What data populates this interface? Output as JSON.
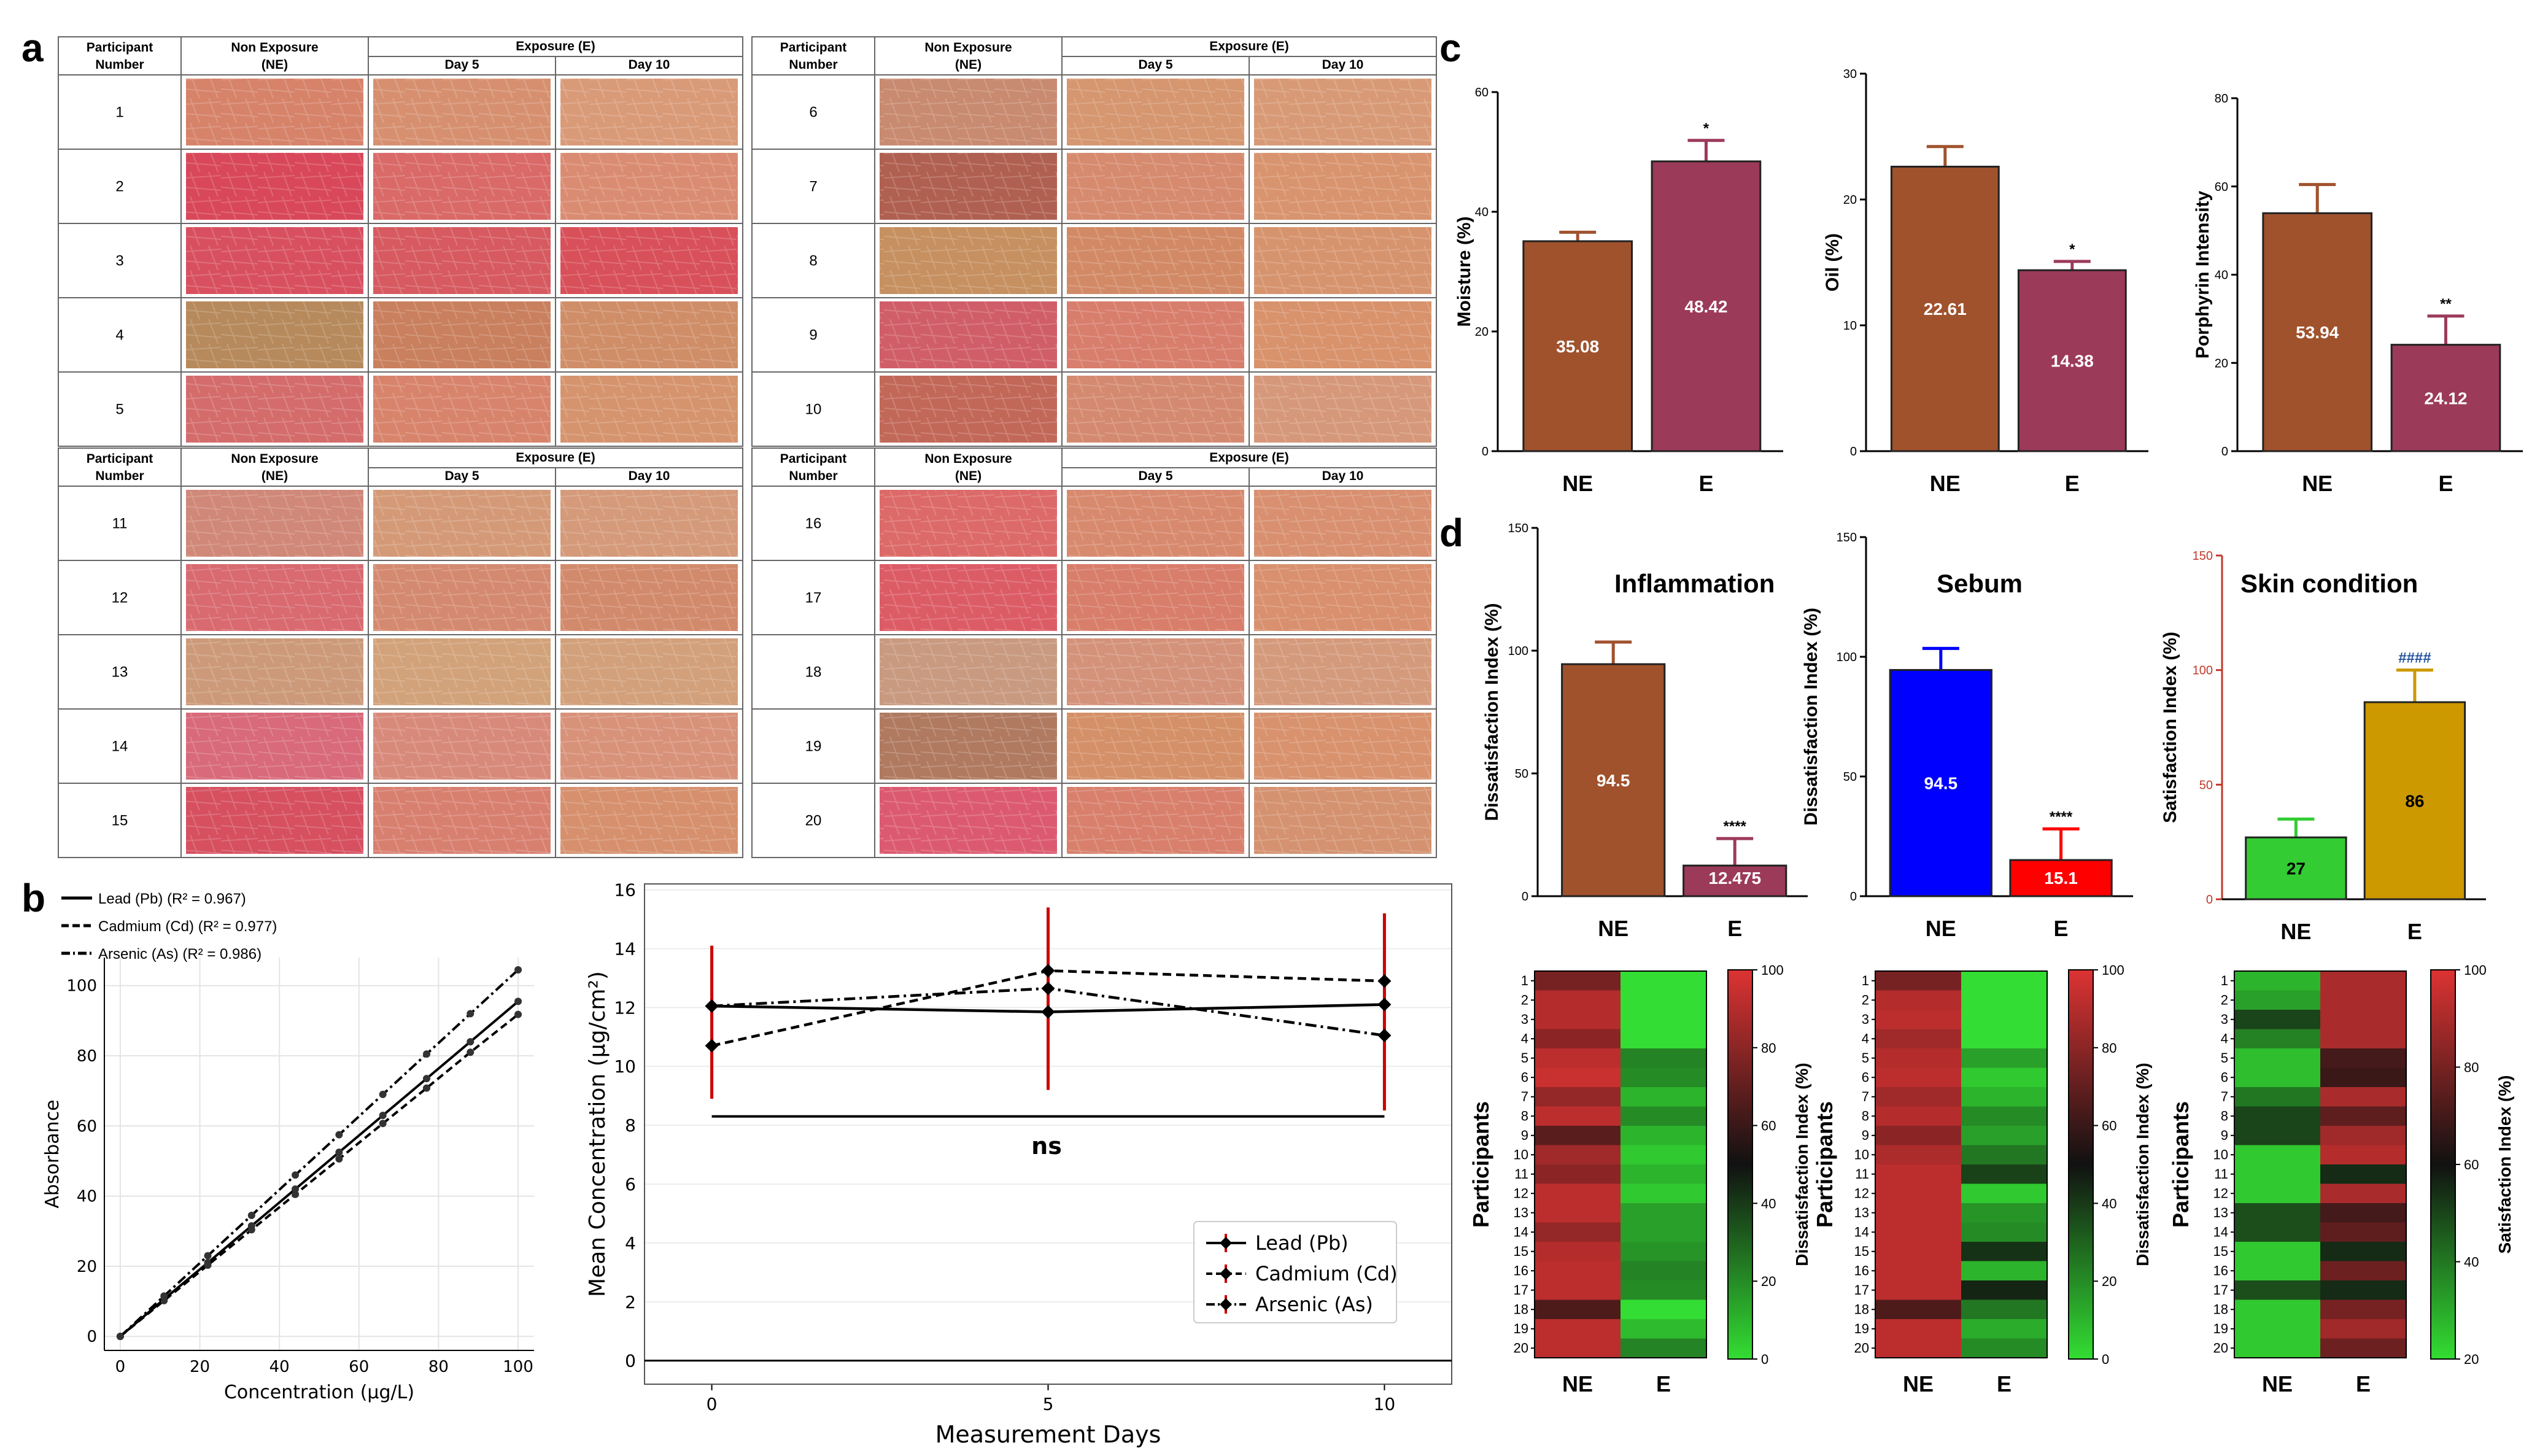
{
  "panel_a": {
    "label": "a",
    "tables": [
      {
        "participants": [
          "1",
          "2",
          "3",
          "4",
          "5"
        ],
        "tones": [
          [
            "#d6836a",
            "#d69070",
            "#d99a78"
          ],
          [
            "#d8485a",
            "#d96a68",
            "#da8c72"
          ],
          [
            "#d85060",
            "#d65a60",
            "#d8505a"
          ],
          [
            "#b68a5c",
            "#c9805e",
            "#cf8e68"
          ],
          [
            "#d46c6c",
            "#d8846c",
            "#d5946e"
          ]
        ]
      },
      {
        "participants": [
          "6",
          "7",
          "8",
          "9",
          "10"
        ],
        "tones": [
          [
            "#c88a70",
            "#d59670",
            "#d89a76"
          ],
          [
            "#b06050",
            "#d68a6e",
            "#d8946e"
          ],
          [
            "#c69060",
            "#d28a66",
            "#d6946e"
          ],
          [
            "#d05e68",
            "#d87e6c",
            "#d8926c"
          ],
          [
            "#c26858",
            "#d48a70",
            "#d6987a"
          ]
        ]
      },
      {
        "participants": [
          "11",
          "12",
          "13",
          "14",
          "15"
        ],
        "tones": [
          [
            "#d08878",
            "#d49a78",
            "#d49a7a"
          ],
          [
            "#d86a70",
            "#d48a70",
            "#d28a6c"
          ],
          [
            "#cc9a7a",
            "#d2a27a",
            "#d2a07a"
          ],
          [
            "#d86a7a",
            "#d88a7a",
            "#d8927a"
          ],
          [
            "#d65060",
            "#d88070",
            "#d6906e"
          ]
        ]
      },
      {
        "participants": [
          "16",
          "17",
          "18",
          "19",
          "20"
        ],
        "tones": [
          [
            "#dc6a68",
            "#d88a6e",
            "#d89070"
          ],
          [
            "#dc5c66",
            "#d87e6a",
            "#d8906e"
          ],
          [
            "#c89a80",
            "#d4927a",
            "#d49a7c"
          ],
          [
            "#b07a60",
            "#d49068",
            "#d8926e"
          ],
          [
            "#dc5a70",
            "#d8806c",
            "#d49270"
          ]
        ]
      }
    ],
    "header": {
      "participant": "Participant",
      "number": "Number",
      "non_exposure": "Non Exposure",
      "ne": "(NE)",
      "exposure": "Exposure (E)",
      "day5": "Day 5",
      "day10": "Day 10"
    }
  },
  "panel_b_left": {
    "label": "b",
    "legend": [
      "Lead (Pb) (R² = 0.967)",
      "Cadmium (Cd) (R² = 0.977)",
      "Arsenic (As) (R² = 0.986)"
    ]
  },
  "panel_b_right": {
    "annotation": "ns",
    "legend": [
      "Lead (Pb)",
      "Cadmium (Cd)",
      "Arsenic (As)"
    ]
  },
  "panel_c": {
    "label": "c"
  },
  "panel_d": {
    "label": "d"
  },
  "chart_data": [
    {
      "id": "b-calibration",
      "type": "line",
      "title": "",
      "xlabel": "Concentration (µg/L)",
      "ylabel": "Absorbance",
      "xlim": [
        -4,
        104
      ],
      "ylim": [
        -4,
        108
      ],
      "xticks": [
        0,
        20,
        40,
        60,
        80,
        100
      ],
      "yticks": [
        0,
        20,
        40,
        60,
        80,
        100
      ],
      "x": [
        0,
        11,
        22,
        33,
        44,
        55,
        66,
        77,
        88,
        100
      ],
      "series": [
        {
          "name": "Lead (Pb) (R² = 0.967)",
          "dash": "solid",
          "values": [
            0,
            10.6,
            21,
            31.5,
            42,
            52.5,
            63,
            73.5,
            84,
            95.5
          ]
        },
        {
          "name": "Cadmium (Cd) (R² = 0.977)",
          "dash": "dashed",
          "values": [
            0,
            10.2,
            20.3,
            30.4,
            40.5,
            50.6,
            60.7,
            70.8,
            81,
            91.8
          ]
        },
        {
          "name": "Arsenic (As) (R² = 0.986)",
          "dash": "dashdot",
          "values": [
            0,
            11.5,
            23,
            34.5,
            46,
            57.5,
            69,
            80.5,
            92,
            104.5
          ]
        }
      ]
    },
    {
      "id": "b-concentration",
      "type": "line",
      "title": "",
      "xlabel": "Measurement Days",
      "ylabel": "Mean Concentration (µg/cm²)",
      "xlim": [
        -1,
        11
      ],
      "ylim": [
        -0.8,
        16.2
      ],
      "xticks": [
        0,
        5,
        10
      ],
      "yticks": [
        0,
        2,
        4,
        6,
        8,
        10,
        12,
        14,
        16
      ],
      "x": [
        0,
        5,
        10
      ],
      "errorbars": [
        [
          8.9,
          14.1
        ],
        [
          9.2,
          15.4
        ],
        [
          8.5,
          15.2
        ]
      ],
      "ns_line": 8.3,
      "series": [
        {
          "name": "Lead (Pb)",
          "dash": "solid",
          "values": [
            12.05,
            11.85,
            12.1
          ]
        },
        {
          "name": "Cadmium (Cd)",
          "dash": "dashed",
          "values": [
            10.7,
            13.25,
            12.9
          ]
        },
        {
          "name": "Arsenic (As)",
          "dash": "dashdot",
          "values": [
            12.05,
            12.65,
            11.05
          ]
        }
      ]
    },
    {
      "id": "c-moisture",
      "type": "bar",
      "ylabel": "Moisture (%)",
      "categories": [
        "NE",
        "E"
      ],
      "values": [
        35.08,
        48.42
      ],
      "value_labels": [
        "35.08",
        "48.42"
      ],
      "errors": [
        1.5,
        3.5
      ],
      "significance": [
        "",
        "*"
      ],
      "ylim": [
        0,
        60
      ],
      "yticks": [
        0,
        20,
        40,
        60
      ],
      "colors": [
        "#a0522d",
        "#9c3a5a"
      ]
    },
    {
      "id": "c-oil",
      "type": "bar",
      "ylabel": "Oil (%)",
      "categories": [
        "NE",
        "E"
      ],
      "values": [
        22.61,
        14.38
      ],
      "value_labels": [
        "22.61",
        "14.38"
      ],
      "errors": [
        1.6,
        0.7
      ],
      "significance": [
        "",
        "*"
      ],
      "ylim": [
        0,
        30
      ],
      "yticks": [
        0,
        10,
        20,
        30
      ],
      "colors": [
        "#a0522d",
        "#9c3a5a"
      ]
    },
    {
      "id": "c-porphyrin",
      "type": "bar",
      "ylabel": "Porphyrin Intensity",
      "categories": [
        "NE",
        "E"
      ],
      "values": [
        53.94,
        24.12
      ],
      "value_labels": [
        "53.94",
        "24.12"
      ],
      "errors": [
        6.5,
        6.5
      ],
      "significance": [
        "",
        "**"
      ],
      "ylim": [
        0,
        80
      ],
      "yticks": [
        0,
        20,
        40,
        60,
        80
      ],
      "colors": [
        "#a0522d",
        "#9c3a5a"
      ]
    },
    {
      "id": "d-inflammation",
      "type": "bar",
      "title": "Inflammation",
      "ylabel": "Dissatisfaction Index (%)",
      "categories": [
        "NE",
        "E"
      ],
      "values": [
        94.5,
        12.475
      ],
      "value_labels": [
        "94.5",
        "12.475"
      ],
      "errors": [
        9,
        11
      ],
      "significance": [
        "",
        "****"
      ],
      "ylim": [
        0,
        150
      ],
      "yticks": [
        0,
        50,
        100,
        150
      ],
      "colors": [
        "#a0522d",
        "#9c3a5a"
      ]
    },
    {
      "id": "d-sebum",
      "type": "bar",
      "title": "Sebum",
      "ylabel": "Dissatisfaction Index (%)",
      "categories": [
        "NE",
        "E"
      ],
      "values": [
        94.5,
        15.1
      ],
      "value_labels": [
        "94.5",
        "15.1"
      ],
      "errors": [
        9,
        13
      ],
      "significance": [
        "",
        "****"
      ],
      "ylim": [
        0,
        150
      ],
      "yticks": [
        0,
        50,
        100,
        150
      ],
      "colors": [
        "#0000ff",
        "#ff0000"
      ]
    },
    {
      "id": "d-skin",
      "type": "bar",
      "title": "Skin condition",
      "ylabel": "Satisfaction Index (%)",
      "categories": [
        "NE",
        "E"
      ],
      "values": [
        27,
        86
      ],
      "value_labels": [
        "27",
        "86"
      ],
      "errors": [
        8,
        14
      ],
      "significance": [
        "",
        "####"
      ],
      "ylim": [
        0,
        150
      ],
      "yticks": [
        0,
        50,
        100,
        150
      ],
      "colors": [
        "#33cc33",
        "#cc9900"
      ]
    },
    {
      "id": "d-heat-inflammation",
      "type": "heatmap",
      "ylabel": "Participants",
      "colorbar_label": "Dissatisfaction Index (%)",
      "colorbar_ticks": [
        0,
        20,
        40,
        60,
        80,
        100
      ],
      "colorbar_range": [
        0,
        100
      ],
      "columns": [
        "NE",
        "E"
      ],
      "rows": [
        "1",
        "2",
        "3",
        "4",
        "5",
        "6",
        "7",
        "8",
        "9",
        "10",
        "11",
        "12",
        "13",
        "14",
        "15",
        "16",
        "17",
        "18",
        "19",
        "20"
      ],
      "values": [
        [
          75,
          0
        ],
        [
          90,
          0
        ],
        [
          90,
          0
        ],
        [
          80,
          0
        ],
        [
          92,
          22
        ],
        [
          95,
          20
        ],
        [
          82,
          10
        ],
        [
          92,
          20
        ],
        [
          68,
          10
        ],
        [
          85,
          5
        ],
        [
          80,
          10
        ],
        [
          92,
          5
        ],
        [
          92,
          15
        ],
        [
          82,
          15
        ],
        [
          90,
          18
        ],
        [
          92,
          22
        ],
        [
          92,
          20
        ],
        [
          65,
          0
        ],
        [
          92,
          8
        ],
        [
          92,
          22
        ]
      ]
    },
    {
      "id": "d-heat-sebum",
      "type": "heatmap",
      "ylabel": "Participants",
      "colorbar_label": "Dissatisfaction Index (%)",
      "colorbar_ticks": [
        0,
        20,
        40,
        60,
        80,
        100
      ],
      "colorbar_range": [
        0,
        100
      ],
      "columns": [
        "NE",
        "E"
      ],
      "rows": [
        "1",
        "2",
        "3",
        "4",
        "5",
        "6",
        "7",
        "8",
        "9",
        "10",
        "11",
        "12",
        "13",
        "14",
        "15",
        "16",
        "17",
        "18",
        "19",
        "20"
      ],
      "values": [
        [
          75,
          0
        ],
        [
          90,
          0
        ],
        [
          92,
          0
        ],
        [
          85,
          0
        ],
        [
          90,
          15
        ],
        [
          92,
          5
        ],
        [
          85,
          10
        ],
        [
          90,
          20
        ],
        [
          80,
          15
        ],
        [
          88,
          25
        ],
        [
          92,
          38
        ],
        [
          92,
          5
        ],
        [
          92,
          18
        ],
        [
          92,
          20
        ],
        [
          92,
          42
        ],
        [
          92,
          10
        ],
        [
          92,
          45
        ],
        [
          65,
          25
        ],
        [
          92,
          12
        ],
        [
          92,
          20
        ]
      ]
    },
    {
      "id": "d-heat-skin",
      "type": "heatmap",
      "ylabel": "Participants",
      "colorbar_label": "Satisfaction Index (%)",
      "colorbar_ticks": [
        20,
        40,
        60,
        80,
        100
      ],
      "colorbar_range": [
        20,
        100
      ],
      "columns": [
        "NE",
        "E"
      ],
      "rows": [
        "1",
        "2",
        "3",
        "4",
        "5",
        "6",
        "7",
        "8",
        "9",
        "10",
        "11",
        "12",
        "13",
        "14",
        "15",
        "16",
        "17",
        "18",
        "19",
        "20"
      ],
      "values": [
        [
          28,
          90
        ],
        [
          32,
          90
        ],
        [
          50,
          90
        ],
        [
          38,
          90
        ],
        [
          26,
          70
        ],
        [
          26,
          68
        ],
        [
          40,
          90
        ],
        [
          50,
          75
        ],
        [
          50,
          88
        ],
        [
          24,
          92
        ],
        [
          24,
          55
        ],
        [
          24,
          90
        ],
        [
          48,
          70
        ],
        [
          48,
          75
        ],
        [
          24,
          55
        ],
        [
          24,
          78
        ],
        [
          48,
          55
        ],
        [
          24,
          80
        ],
        [
          24,
          88
        ],
        [
          24,
          78
        ]
      ]
    }
  ]
}
